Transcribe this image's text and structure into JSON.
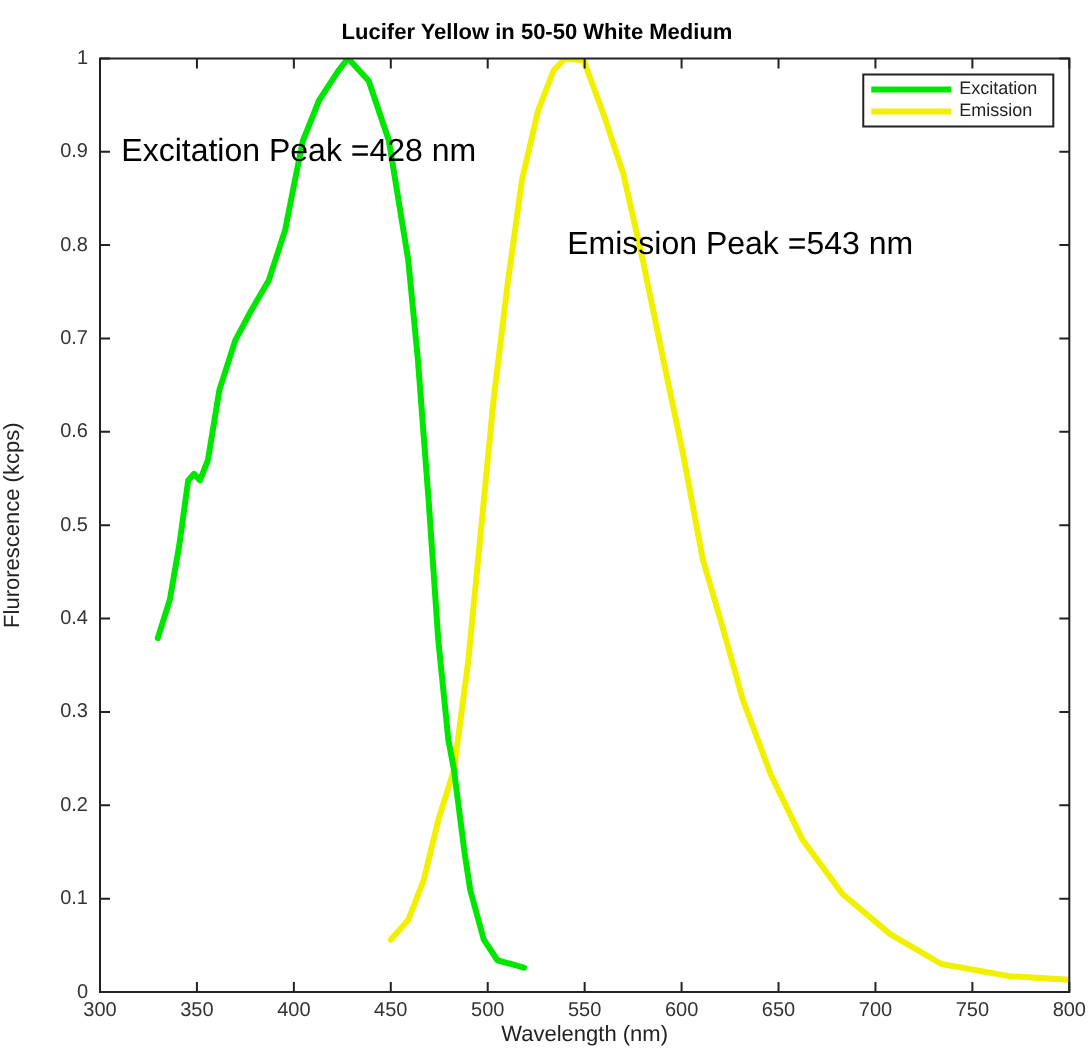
{
  "chart_data": {
    "type": "line",
    "title": "Lucifer Yellow in 50-50 White Medium",
    "xlabel": "Wavelength (nm)",
    "ylabel": "Flurorescence (kcps)",
    "series": [
      {
        "name": "Excitation",
        "color": "#00e600",
        "x": [
          329.8,
          336,
          341,
          345.5,
          348.5,
          351.6,
          355.7,
          361.6,
          369.8,
          378,
          387,
          395.5,
          400.6,
          404.7,
          413,
          423,
          428,
          438.6,
          449,
          459,
          464,
          469.5,
          474.5,
          479.7,
          482.6,
          488,
          491,
          498,
          505,
          518.7
        ],
        "values": [
          0.379,
          0.42,
          0.48,
          0.548,
          0.555,
          0.548,
          0.57,
          0.645,
          0.698,
          0.73,
          0.762,
          0.816,
          0.87,
          0.912,
          0.955,
          0.987,
          1.0,
          0.976,
          0.912,
          0.784,
          0.677,
          0.527,
          0.377,
          0.27,
          0.238,
          0.15,
          0.109,
          0.056,
          0.034,
          0.026
        ]
      },
      {
        "name": "Emission",
        "color": "#f0f000",
        "x": [
          450,
          459,
          467,
          474.5,
          482.6,
          490,
          497,
          503,
          510.5,
          517.7,
          526,
          534,
          540,
          549.5,
          559.8,
          570,
          580,
          590.6,
          600.8,
          611,
          621,
          631.6,
          646,
          662.4,
          683,
          707.6,
          734,
          769,
          800
        ],
        "values": [
          0.056,
          0.077,
          0.12,
          0.184,
          0.238,
          0.355,
          0.505,
          0.634,
          0.762,
          0.87,
          0.944,
          0.987,
          1.0,
          0.998,
          0.94,
          0.876,
          0.784,
          0.677,
          0.576,
          0.463,
          0.392,
          0.313,
          0.233,
          0.163,
          0.105,
          0.062,
          0.03,
          0.017,
          0.013
        ]
      }
    ],
    "xlim": [
      300,
      800
    ],
    "xticks": [
      300,
      350,
      400,
      450,
      500,
      550,
      600,
      650,
      700,
      750,
      800
    ],
    "ylim": [
      0,
      1
    ],
    "yticks": [
      0,
      0.1,
      0.2,
      0.3,
      0.4,
      0.5,
      0.6,
      0.7,
      0.8,
      0.9,
      1
    ],
    "annotations": [
      "Excitation Peak =428 nm",
      "Emission Peak =543 nm"
    ],
    "legend": "top right",
    "grid": false,
    "marker": "none",
    "line_style": "solid"
  }
}
